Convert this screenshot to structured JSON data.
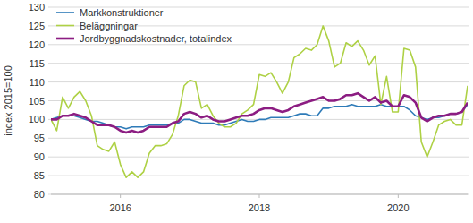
{
  "chart_data": {
    "type": "line",
    "y_label": "index 2015=100",
    "x": [
      2015,
      2015.083,
      2015.167,
      2015.25,
      2015.333,
      2015.417,
      2015.5,
      2015.583,
      2015.667,
      2015.75,
      2015.833,
      2015.917,
      2016,
      2016.083,
      2016.167,
      2016.25,
      2016.333,
      2016.417,
      2016.5,
      2016.583,
      2016.667,
      2016.75,
      2016.833,
      2016.917,
      2017,
      2017.083,
      2017.167,
      2017.25,
      2017.333,
      2017.417,
      2017.5,
      2017.583,
      2017.667,
      2017.75,
      2017.833,
      2017.917,
      2018,
      2018.083,
      2018.167,
      2018.25,
      2018.333,
      2018.417,
      2018.5,
      2018.583,
      2018.667,
      2018.75,
      2018.833,
      2018.917,
      2019,
      2019.083,
      2019.167,
      2019.25,
      2019.333,
      2019.417,
      2019.5,
      2019.583,
      2019.667,
      2019.75,
      2019.833,
      2019.917,
      2020,
      2020.083,
      2020.167,
      2020.25,
      2020.333,
      2020.417,
      2020.5,
      2020.583,
      2020.667,
      2020.75,
      2020.833,
      2020.917,
      2021
    ],
    "series": [
      {
        "name": "Markkonstruktioner",
        "color": "#2e7bb8",
        "values": [
          100,
          100.5,
          101,
          101,
          101,
          100.5,
          100,
          99.5,
          99.5,
          99,
          98.5,
          98,
          98,
          97.5,
          98,
          98,
          98,
          98.5,
          98.5,
          98.5,
          98.5,
          99,
          99,
          100,
          100,
          99.5,
          99,
          99,
          99,
          98.5,
          98.5,
          99,
          99.5,
          100,
          99.5,
          99.5,
          100,
          100,
          100.5,
          100.5,
          100.5,
          100.5,
          101,
          101.5,
          101.5,
          101,
          101,
          103,
          103,
          103.5,
          103.5,
          103.5,
          104,
          103.5,
          103.5,
          103.5,
          103.5,
          104,
          103.5,
          103.5,
          103.5,
          103.5,
          102.5,
          101,
          100.5,
          100,
          100.5,
          100.5,
          101,
          101.5,
          101.5,
          102,
          104
        ]
      },
      {
        "name": "Beläggningar",
        "color": "#aed145",
        "values": [
          100,
          97,
          106,
          103,
          106,
          107.5,
          105,
          101,
          93,
          92,
          91.5,
          94,
          88,
          84.5,
          86,
          84.5,
          86,
          91,
          93,
          93,
          93.5,
          96,
          101,
          109,
          110.5,
          110,
          103,
          104,
          101,
          99,
          98,
          98,
          99,
          101.5,
          102.5,
          104,
          112,
          111.5,
          112.5,
          110,
          107,
          110,
          116.5,
          117.5,
          119,
          118.5,
          120,
          125,
          121,
          114,
          115,
          120.5,
          119.5,
          121,
          118.5,
          114.5,
          117,
          104,
          111.5,
          102,
          102,
          119,
          118.5,
          114,
          94,
          90,
          94,
          98.5,
          99.5,
          100,
          98.5,
          98.5,
          109
        ]
      },
      {
        "name": "Jordbyggnadskostnader, totalindex",
        "color": "#8c1d82",
        "values": [
          100,
          100,
          101,
          101,
          101.5,
          101,
          100.5,
          99.5,
          98.5,
          98.5,
          98.5,
          98,
          97,
          96.5,
          97,
          96.5,
          97,
          98,
          98,
          98,
          98,
          99,
          99.5,
          101.5,
          102,
          101.5,
          100.5,
          101,
          100,
          99.5,
          99.5,
          100,
          100.5,
          101,
          101,
          101.5,
          102.5,
          103,
          103,
          102.5,
          102,
          102.5,
          103.5,
          104,
          104.5,
          105,
          105.5,
          106,
          105,
          105,
          105.5,
          106.5,
          106.5,
          107,
          106,
          105,
          106,
          104.5,
          105,
          103.5,
          103.5,
          106.5,
          106,
          104.5,
          100.5,
          99.5,
          100.5,
          101,
          101,
          101.5,
          101.5,
          102,
          104.5
        ]
      }
    ],
    "xlim": [
      2015,
      2021
    ],
    "xticks": [
      2016,
      2018,
      2020
    ],
    "ylim": [
      80,
      130
    ],
    "yticks": [
      80,
      85,
      90,
      95,
      100,
      105,
      110,
      115,
      120,
      125,
      130
    ],
    "grid": true,
    "legend": "top-left"
  }
}
